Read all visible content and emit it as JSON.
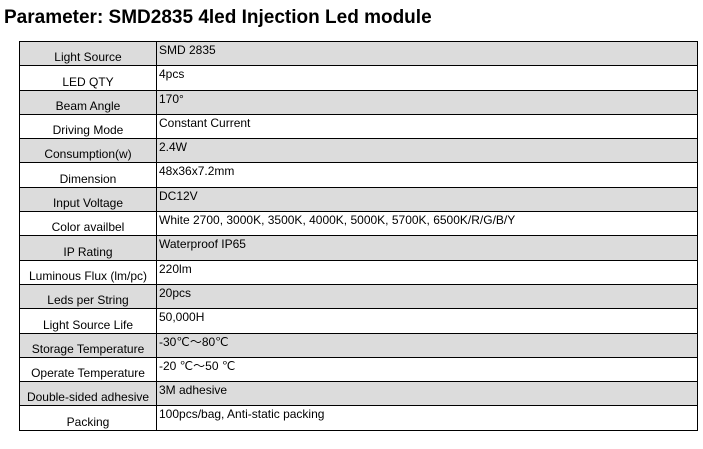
{
  "header": {
    "title": "Parameter: SMD2835 4led Injection Led module"
  },
  "table": {
    "rows": [
      [
        "Light Source",
        "SMD 2835"
      ],
      [
        "LED QTY",
        "4pcs"
      ],
      [
        "Beam Angle",
        "170°"
      ],
      [
        "Driving Mode",
        "Constant Current"
      ],
      [
        "Consumption(w)",
        "2.4W"
      ],
      [
        "Dimension",
        "48x36x7.2mm"
      ],
      [
        "Input Voltage",
        "DC12V"
      ],
      [
        "Color availbel",
        "White 2700, 3000K, 3500K, 4000K, 5000K, 5700K, 6500K/R/G/B/Y"
      ],
      [
        "IP Rating",
        "Waterproof IP65"
      ],
      [
        "Luminous Flux (lm/pc)",
        "220lm"
      ],
      [
        "Leds per String",
        "20pcs"
      ],
      [
        "Light Source Life",
        "50,000H"
      ],
      [
        "Storage Temperature",
        "-30℃～80℃"
      ],
      [
        "Operate Temperature",
        "-20 ℃～50 ℃"
      ],
      [
        "Double-sided adhesive",
        "3M adhesive"
      ],
      [
        "Packing",
        "100pcs/bag, Anti-static packing"
      ]
    ]
  }
}
